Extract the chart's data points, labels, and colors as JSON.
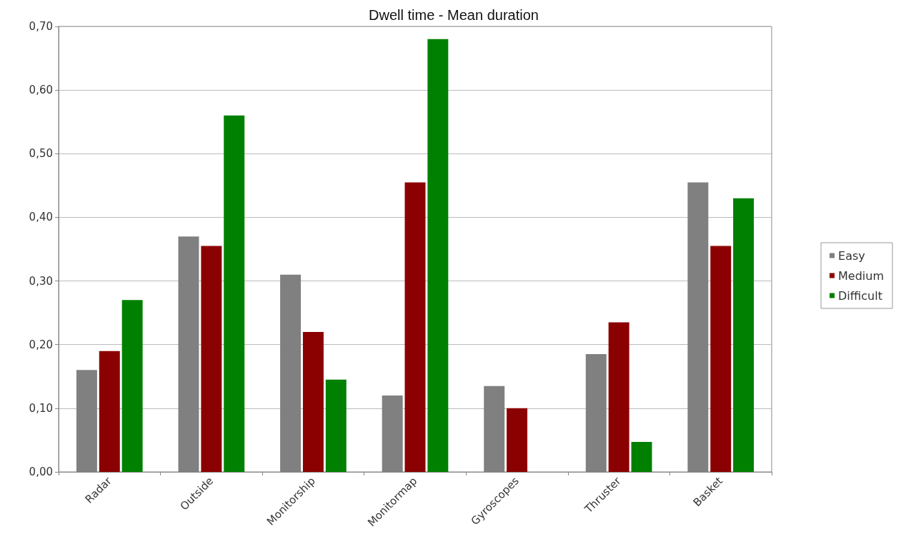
{
  "chart_data": {
    "type": "bar",
    "title": "Dwell time - Mean duration",
    "categories": [
      "Radar",
      "Outside",
      "Monitorship",
      "Monitormap",
      "Gyroscopes",
      "Thruster",
      "Basket"
    ],
    "series": [
      {
        "name": "Easy",
        "color": "#808080",
        "values": [
          0.16,
          0.37,
          0.31,
          0.12,
          0.135,
          0.185,
          0.455
        ]
      },
      {
        "name": "Medium",
        "color": "#8b0000",
        "values": [
          0.19,
          0.355,
          0.22,
          0.455,
          0.1,
          0.235,
          0.355
        ]
      },
      {
        "name": "Difficult",
        "color": "#008000",
        "values": [
          0.27,
          0.56,
          0.145,
          0.68,
          null,
          0.047,
          0.43
        ]
      }
    ],
    "ylim": [
      0,
      0.7
    ],
    "yticks": [
      {
        "value": 0,
        "label": "0,00"
      },
      {
        "value": 0.1,
        "label": "0,10"
      },
      {
        "value": 0.2,
        "label": "0,20"
      },
      {
        "value": 0.3,
        "label": "0,30"
      },
      {
        "value": 0.4,
        "label": "0,40"
      },
      {
        "value": 0.5,
        "label": "0,50"
      },
      {
        "value": 0.6,
        "label": "0,60"
      },
      {
        "value": 0.7,
        "label": "0,70"
      }
    ],
    "grid": "y",
    "legend": "right"
  }
}
